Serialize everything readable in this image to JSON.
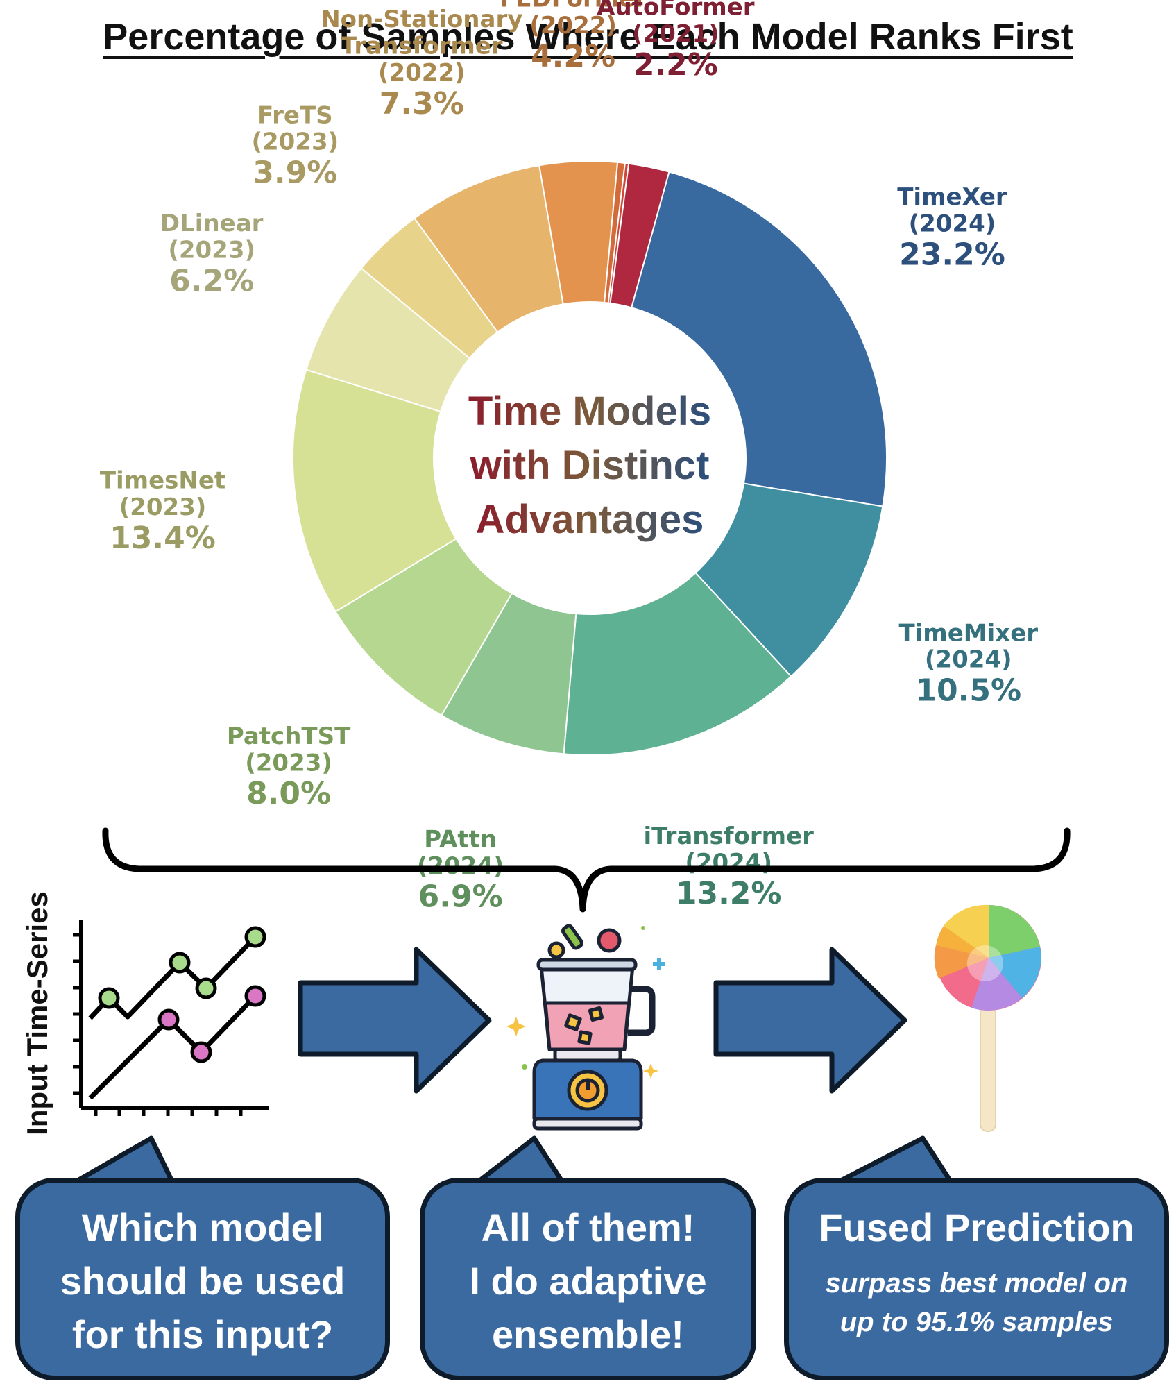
{
  "title": "Percentage of Samples Where Each Model Ranks First",
  "center_text": [
    "Time Models",
    "with Distinct",
    "Advantages"
  ],
  "chart_data": {
    "type": "pie",
    "title": "Percentage of Samples Where Each Model Ranks First",
    "slices": [
      {
        "name": "TimeXer",
        "year": "(2024)",
        "value": 23.2,
        "label": "23.2%",
        "color": "#386aa0",
        "text_color": "#2c4f7c"
      },
      {
        "name": "TimeMixer",
        "year": "(2024)",
        "value": 10.5,
        "label": "10.5%",
        "color": "#3f8fa0",
        "text_color": "#35707e"
      },
      {
        "name": "iTransformer",
        "year": "(2024)",
        "value": 13.2,
        "label": "13.2%",
        "color": "#5fb193",
        "text_color": "#3e7d67"
      },
      {
        "name": "PAttn",
        "year": "(2024)",
        "value": 6.9,
        "label": "6.9%",
        "color": "#8fc590",
        "text_color": "#5f8f5c"
      },
      {
        "name": "PatchTST",
        "year": "(2023)",
        "value": 8.0,
        "label": "8.0%",
        "color": "#b5d78f",
        "text_color": "#7a9a5a"
      },
      {
        "name": "TimesNet",
        "year": "(2023)",
        "value": 13.4,
        "label": "13.4%",
        "color": "#d6e195",
        "text_color": "#9a9c63"
      },
      {
        "name": "DLinear",
        "year": "(2023)",
        "value": 6.2,
        "label": "6.2%",
        "color": "#e6e4ad",
        "text_color": "#a6a57a"
      },
      {
        "name": "FreTS",
        "year": "(2023)",
        "value": 3.9,
        "label": "3.9%",
        "color": "#e8d38a",
        "text_color": "#a89a62"
      },
      {
        "name": "Non-Stationary Transformer",
        "year": "(2022)",
        "value": 7.3,
        "label": "7.3%",
        "color": "#e7b46c",
        "text_color": "#a9894e"
      },
      {
        "name": "FEDFormer",
        "year": "(2022)",
        "value": 4.2,
        "label": "4.2%",
        "color": "#e4934f",
        "text_color": "#a86e3c"
      },
      {
        "name": "",
        "year": "",
        "value": 0.4,
        "label": "",
        "color": "#d36a3a",
        "text_color": ""
      },
      {
        "name": "",
        "year": "",
        "value": 0.2,
        "label": "",
        "color": "#d0473a",
        "text_color": ""
      },
      {
        "name": "AutoFormer",
        "year": "(2021)",
        "value": 2.2,
        "label": "2.2%",
        "color": "#b0283f",
        "text_color": "#7f1f33"
      }
    ]
  },
  "flow": {
    "input_axis_label": "Input Time-Series",
    "bubble_1": [
      "Which model",
      "should be used",
      "for this input?"
    ],
    "bubble_2": [
      "All of them!",
      "I do adaptive",
      "ensemble!"
    ],
    "bubble_3_title": "Fused Prediction",
    "bubble_3_sub": [
      "surpass best model on",
      "up to 95.1% samples"
    ],
    "colors": {
      "arrow": "#3a6aa0",
      "outline": "#0d1b2a"
    }
  }
}
